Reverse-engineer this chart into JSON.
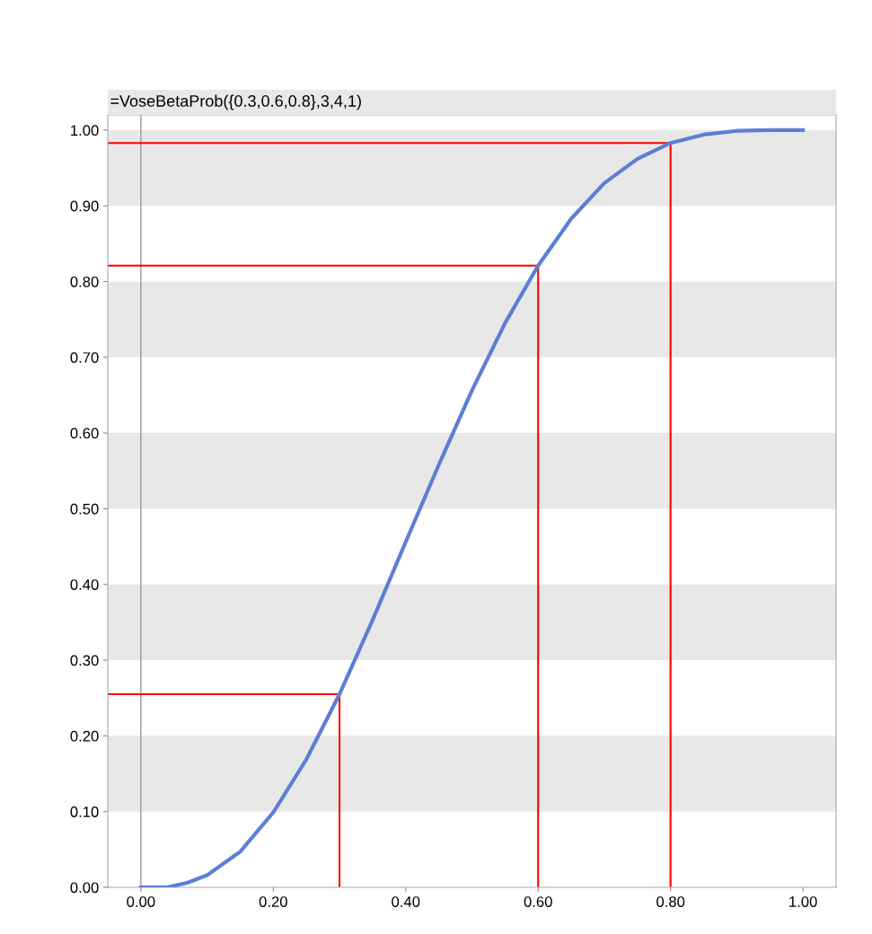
{
  "chart_data": {
    "type": "line",
    "title": "=VoseBetaProb({0.3,0.6,0.8},3,4,1)",
    "xlim": [
      -0.05,
      1.05
    ],
    "ylim": [
      0,
      1.02
    ],
    "xticks": [
      {
        "value": 0,
        "label": "0.00"
      },
      {
        "value": 0.2,
        "label": "0.20"
      },
      {
        "value": 0.4,
        "label": "0.40"
      },
      {
        "value": 0.6,
        "label": "0.60"
      },
      {
        "value": 0.8,
        "label": "0.80"
      },
      {
        "value": 1,
        "label": "1.00"
      }
    ],
    "yticks": [
      {
        "value": 0,
        "label": "0.00"
      },
      {
        "value": 0.1,
        "label": "0.10"
      },
      {
        "value": 0.2,
        "label": "0.20"
      },
      {
        "value": 0.3,
        "label": "0.30"
      },
      {
        "value": 0.4,
        "label": "0.40"
      },
      {
        "value": 0.5,
        "label": "0.50"
      },
      {
        "value": 0.6,
        "label": "0.60"
      },
      {
        "value": 0.7,
        "label": "0.70"
      },
      {
        "value": 0.8,
        "label": "0.80"
      },
      {
        "value": 0.9,
        "label": "0.90"
      },
      {
        "value": 1,
        "label": "1.00"
      }
    ],
    "grid": false,
    "series": [
      {
        "color": "#5b7fd4",
        "x": [
          0,
          0.04,
          0.05,
          0.07,
          0.1,
          0.15,
          0.2,
          0.25,
          0.3,
          0.35,
          0.4,
          0.45,
          0.5,
          0.55,
          0.6,
          0.65,
          0.7,
          0.75,
          0.8,
          0.85,
          0.9,
          0.95,
          1.0
        ],
        "values": [
          0,
          0,
          0.002,
          0.006,
          0.016,
          0.047,
          0.099,
          0.169,
          0.255,
          0.353,
          0.456,
          0.558,
          0.656,
          0.745,
          0.821,
          0.883,
          0.93,
          0.962,
          0.983,
          0.994,
          0.999,
          1.0,
          1.0
        ]
      },
      {
        "color": "#ff0000",
        "x": [
          -0.05,
          0.3,
          0.3
        ],
        "values": [
          0.255,
          0.255,
          0
        ]
      },
      {
        "color": "#ff0000",
        "x": [
          -0.05,
          0.6,
          0.6
        ],
        "values": [
          0.821,
          0.821,
          0
        ]
      },
      {
        "color": "#ff0000",
        "x": [
          -0.05,
          0.8,
          0.8
        ],
        "values": [
          0.983,
          0.983,
          0
        ]
      }
    ],
    "ref_lines": [
      {
        "axis": "x",
        "value": 0,
        "color": "#999999"
      }
    ],
    "bands": [
      {
        "axis": "y",
        "from": 0.1,
        "to": 0.2,
        "color": "#e8e8e8"
      },
      {
        "axis": "y",
        "from": 0.3,
        "to": 0.4,
        "color": "#e8e8e8"
      },
      {
        "axis": "y",
        "from": 0.5,
        "to": 0.6,
        "color": "#e8e8e8"
      },
      {
        "axis": "y",
        "from": 0.7,
        "to": 0.8,
        "color": "#e8e8e8"
      },
      {
        "axis": "y",
        "from": 0.9,
        "to": 1.0,
        "color": "#e8e8e8"
      }
    ]
  }
}
